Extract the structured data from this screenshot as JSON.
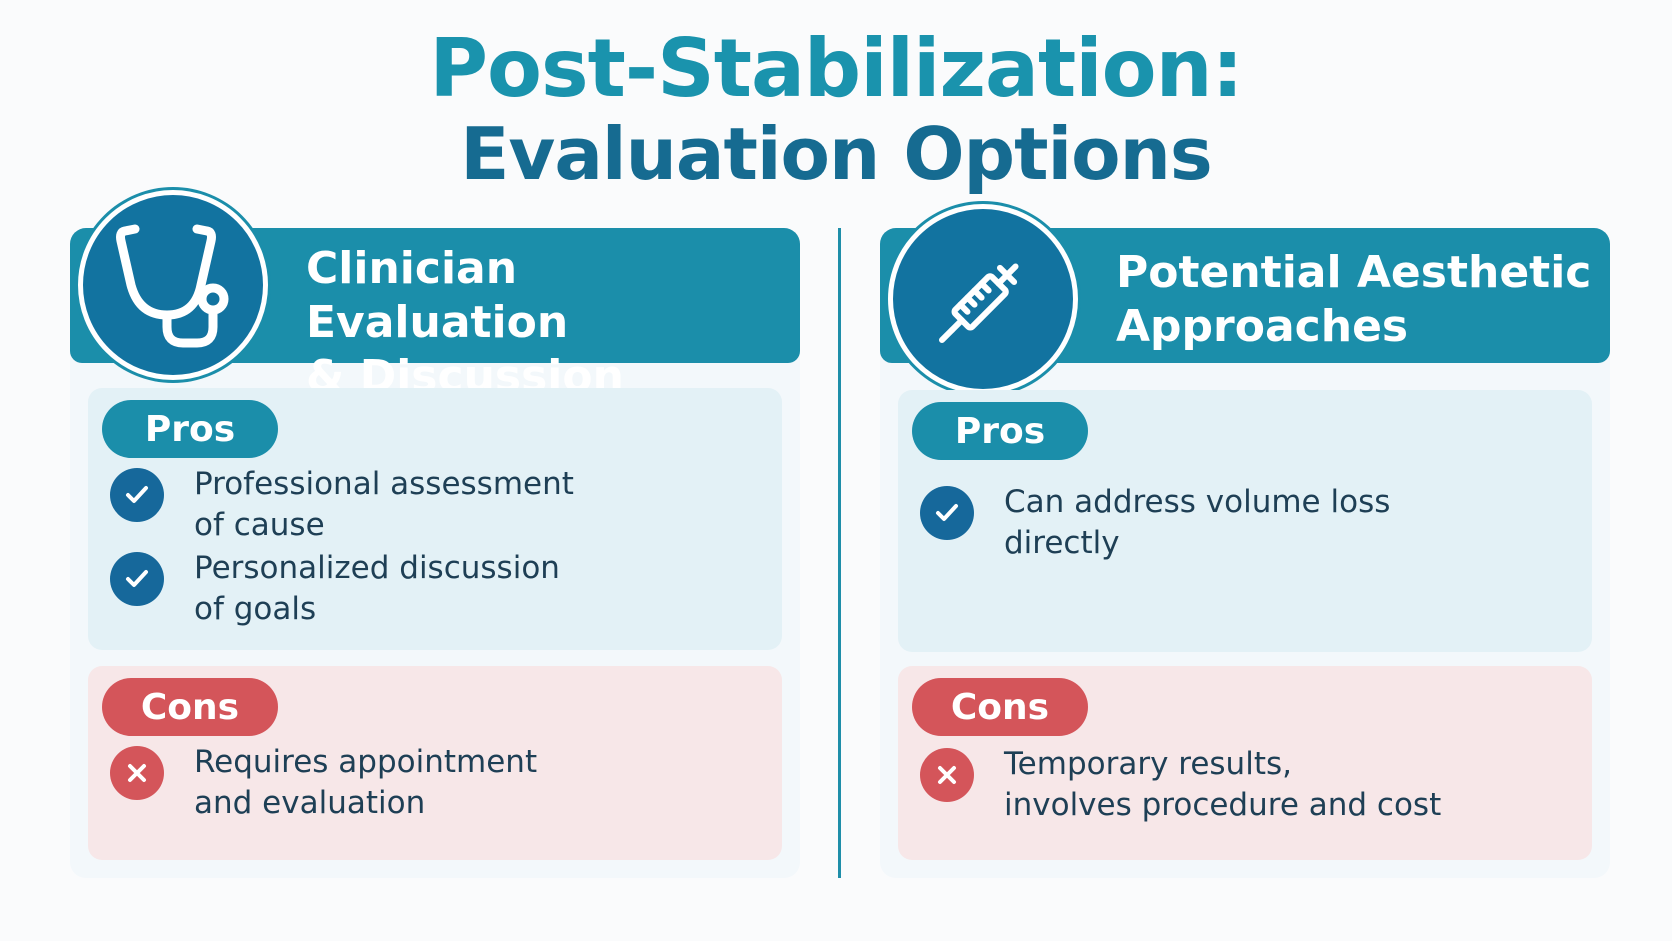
{
  "title": {
    "line1": "Post-Stabilization:",
    "line2": "Evaluation Options"
  },
  "colors": {
    "primary_teal": "#1b8eaa",
    "dark_blue": "#1273a0",
    "pros_bg": "#e3f1f6",
    "cons_bg": "#f7e7e8",
    "cons_red": "#d4555a"
  },
  "options": [
    {
      "icon": "stethoscope-icon",
      "title_lines": [
        "Clinician Evaluation",
        "& Discussion"
      ],
      "pros_label": "Pros",
      "pros": [
        {
          "lines": [
            "Professional assessment",
            "of cause"
          ]
        },
        {
          "lines": [
            "Personalized discussion",
            "of goals"
          ]
        }
      ],
      "cons_label": "Cons",
      "cons": [
        {
          "lines": [
            "Requires appointment",
            "and evaluation"
          ]
        }
      ]
    },
    {
      "icon": "syringe-icon",
      "title_lines": [
        "Potential Aesthetic",
        "Approaches"
      ],
      "pros_label": "Pros",
      "pros": [
        {
          "lines": [
            "Can address volume loss",
            "directly"
          ]
        }
      ],
      "cons_label": "Cons",
      "cons": [
        {
          "lines": [
            "Temporary results,",
            "involves procedure and cost"
          ]
        }
      ]
    }
  ]
}
